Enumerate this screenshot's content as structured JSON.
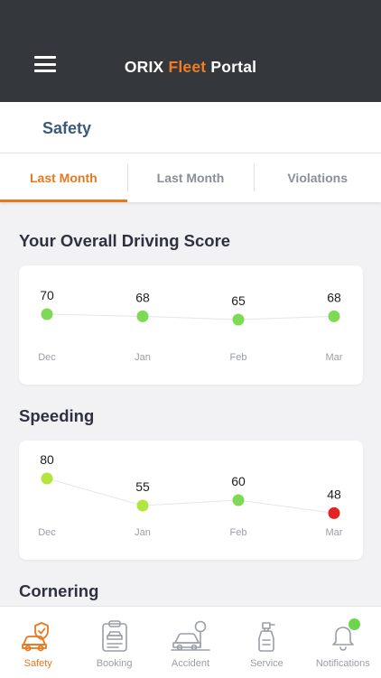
{
  "header": {
    "title_prefix": "ORIX ",
    "title_accent": "Fleet",
    "title_suffix": " Portal",
    "accent_color": "#f07e1f"
  },
  "page": {
    "title": "Safety"
  },
  "tabs": [
    {
      "label": "Last Month",
      "active": true
    },
    {
      "label": "Last Month",
      "active": false
    },
    {
      "label": "Violations",
      "active": false
    }
  ],
  "sections": {
    "driving_score": {
      "title": "Your Overall Driving Score"
    },
    "speeding": {
      "title": "Speeding"
    },
    "cornering": {
      "title": "Cornering"
    }
  },
  "chart_data": [
    {
      "type": "line",
      "categories": [
        "Dec",
        "Jan",
        "Feb",
        "Mar"
      ],
      "values": [
        70,
        68,
        65,
        68
      ],
      "point_colors": [
        "#7ed957",
        "#7ed957",
        "#7ed957",
        "#7ed957"
      ],
      "ylim": [
        40,
        90
      ],
      "grid": false
    },
    {
      "type": "line",
      "categories": [
        "Dec",
        "Jan",
        "Feb",
        "Mar"
      ],
      "values": [
        80,
        55,
        60,
        48
      ],
      "point_colors": [
        "#b3e63c",
        "#b3e63c",
        "#7ed957",
        "#e52222"
      ],
      "ylim": [
        40,
        90
      ],
      "grid": false
    }
  ],
  "bottom_nav": [
    {
      "label": "Safety",
      "icon": "car-shield-icon",
      "active": true
    },
    {
      "label": "Booking",
      "icon": "clipboard-car-icon",
      "active": false
    },
    {
      "label": "Accident",
      "icon": "car-accident-icon",
      "active": false
    },
    {
      "label": "Service",
      "icon": "spray-bottle-icon",
      "active": false
    },
    {
      "label": "Notifications",
      "icon": "bell-icon",
      "active": false,
      "badge_color": "#6bd64a"
    }
  ],
  "colors": {
    "header_bg": "#34373c",
    "active": "#e8771e",
    "page_title": "#3c5a7e"
  }
}
